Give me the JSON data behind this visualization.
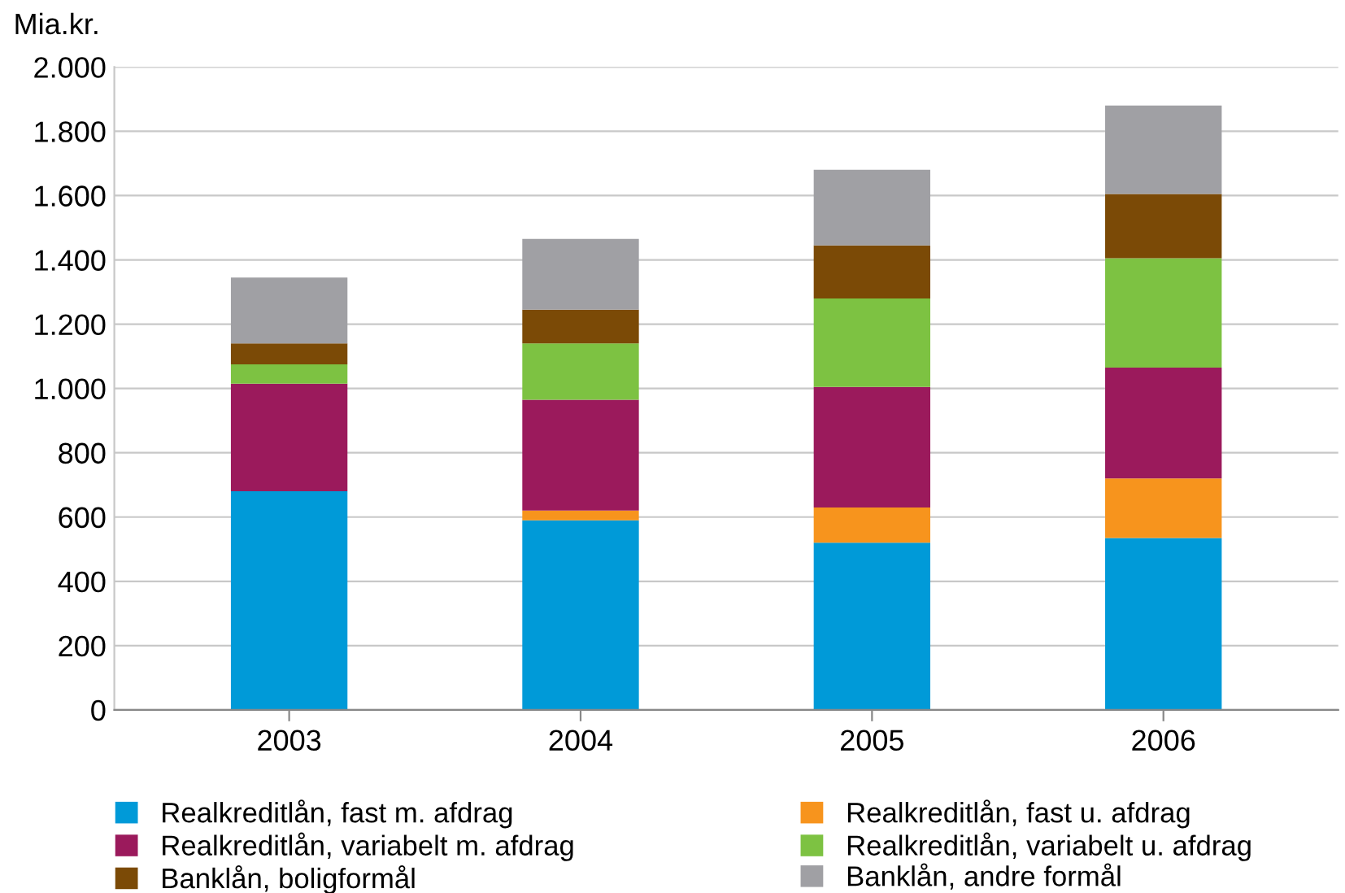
{
  "chart_data": {
    "type": "bar",
    "stacked": true,
    "ylabel": "Mia.kr.",
    "categories": [
      "2003",
      "2004",
      "2005",
      "2006"
    ],
    "series": [
      {
        "name": "Realkreditlån, fast m. afdrag",
        "color": "#009ad8",
        "values": [
          680,
          590,
          520,
          535
        ]
      },
      {
        "name": "Realkreditlån, fast u. afdrag",
        "color": "#f7941d",
        "values": [
          0,
          30,
          110,
          185
        ]
      },
      {
        "name": "Realkreditlån, variabelt m. afdrag",
        "color": "#9b1a5c",
        "values": [
          335,
          345,
          375,
          345
        ]
      },
      {
        "name": "Realkreditlån, variabelt u. afdrag",
        "color": "#7dc242",
        "values": [
          60,
          175,
          275,
          340
        ]
      },
      {
        "name": "Banklån, boligformål",
        "color": "#7b4a06",
        "values": [
          65,
          105,
          165,
          200
        ]
      },
      {
        "name": "Banklån, andre formål",
        "color": "#a0a0a4",
        "values": [
          205,
          220,
          235,
          275
        ]
      }
    ],
    "ylim": [
      0,
      2000
    ],
    "yticks": [
      {
        "value": 0,
        "label": "0"
      },
      {
        "value": 200,
        "label": "200"
      },
      {
        "value": 400,
        "label": "400"
      },
      {
        "value": 600,
        "label": "600"
      },
      {
        "value": 800,
        "label": "800"
      },
      {
        "value": 1000,
        "label": "1.000"
      },
      {
        "value": 1200,
        "label": "1.200"
      },
      {
        "value": 1400,
        "label": "1.400"
      },
      {
        "value": 1600,
        "label": "1.600"
      },
      {
        "value": 1800,
        "label": "1.800"
      },
      {
        "value": 2000,
        "label": "2.000"
      }
    ],
    "grid": "y",
    "legend": "bottom"
  }
}
